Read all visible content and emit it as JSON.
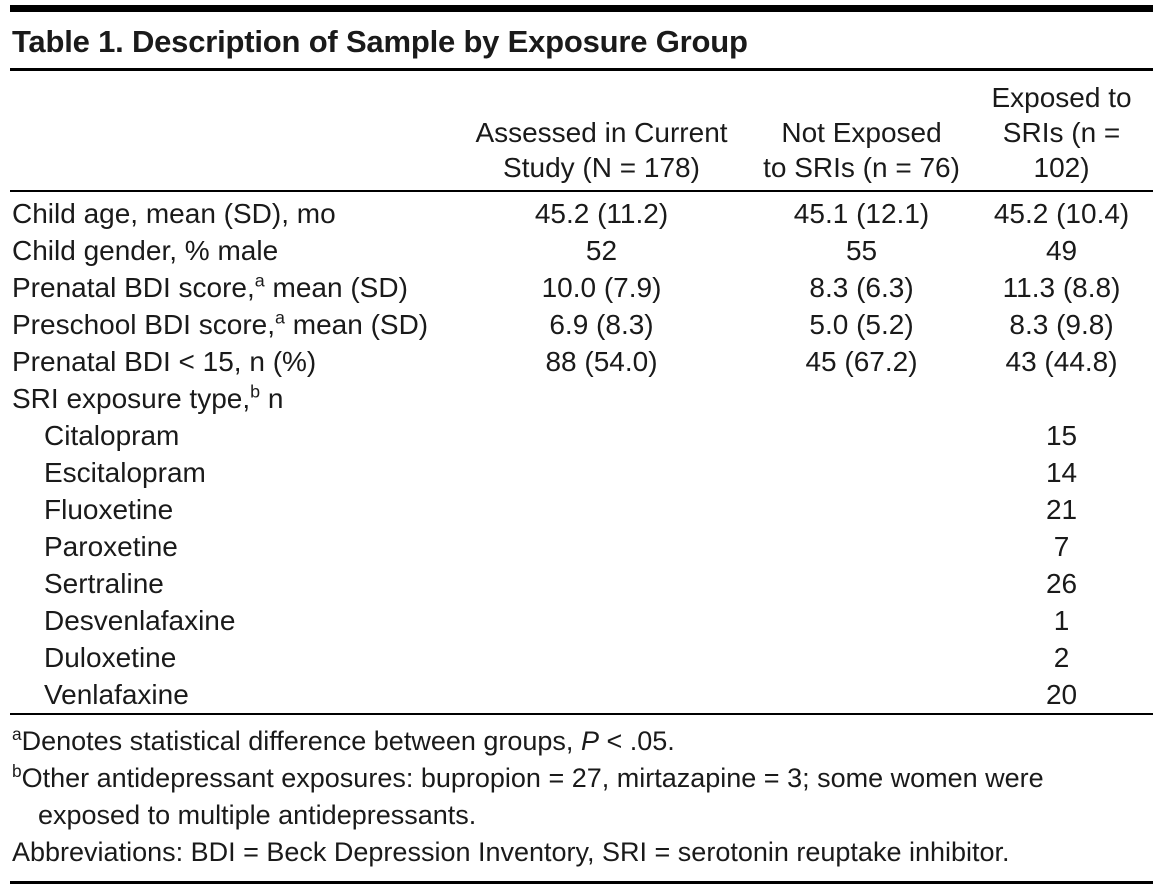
{
  "title": "Table 1. Description of Sample by Exposure Group",
  "table": {
    "columns": [
      {
        "line1": "Assessed in Current",
        "line2": "Study (N = 178)"
      },
      {
        "line1": "Not Exposed",
        "line2": "to SRIs (n = 76)"
      },
      {
        "line1": "Exposed to",
        "line2": "SRIs (n = 102)"
      }
    ],
    "rows": [
      {
        "label": "Child age, mean (SD), mo",
        "values": [
          "45.2 (11.2)",
          "45.1 (12.1)",
          "45.2 (10.4)"
        ]
      },
      {
        "label": "Child gender, % male",
        "values": [
          "52",
          "55",
          "49"
        ]
      },
      {
        "label": "Prenatal BDI score,",
        "sup": "a",
        "label_post": " mean (SD)",
        "values": [
          "10.0 (7.9)",
          "8.3 (6.3)",
          "11.3 (8.8)"
        ]
      },
      {
        "label": "Preschool BDI score,",
        "sup": "a",
        "label_post": " mean (SD)",
        "values": [
          "6.9 (8.3)",
          "5.0 (5.2)",
          "8.3 (9.8)"
        ]
      },
      {
        "label": "Prenatal BDI < 15, n (%)",
        "values": [
          "88 (54.0)",
          "45 (67.2)",
          "43 (44.8)"
        ]
      },
      {
        "label": "SRI exposure type,",
        "sup": "b",
        "label_post": " n",
        "values": [
          "",
          "",
          ""
        ]
      },
      {
        "label": "Citalopram",
        "indent": true,
        "values": [
          "",
          "",
          "15"
        ]
      },
      {
        "label": "Escitalopram",
        "indent": true,
        "values": [
          "",
          "",
          "14"
        ]
      },
      {
        "label": "Fluoxetine",
        "indent": true,
        "values": [
          "",
          "",
          "21"
        ]
      },
      {
        "label": "Paroxetine",
        "indent": true,
        "values": [
          "",
          "",
          "7"
        ]
      },
      {
        "label": "Sertraline",
        "indent": true,
        "values": [
          "",
          "",
          "26"
        ]
      },
      {
        "label": "Desvenlafaxine",
        "indent": true,
        "values": [
          "",
          "",
          "1"
        ]
      },
      {
        "label": "Duloxetine",
        "indent": true,
        "values": [
          "",
          "",
          "2"
        ]
      },
      {
        "label": "Venlafaxine",
        "indent": true,
        "values": [
          "",
          "",
          "20"
        ]
      }
    ]
  },
  "footnotes": {
    "a": {
      "sup": "a",
      "pre": "Denotes statistical difference between groups, ",
      "italic": "P",
      "post": " < .05."
    },
    "b": {
      "sup": "b",
      "text": "Other antidepressant exposures: bupropion = 27, mirtazapine = 3; some women were exposed to multiple antidepressants."
    },
    "abbreviations": "Abbreviations: BDI = Beck Depression Inventory, SRI = serotonin reuptake inhibitor."
  }
}
